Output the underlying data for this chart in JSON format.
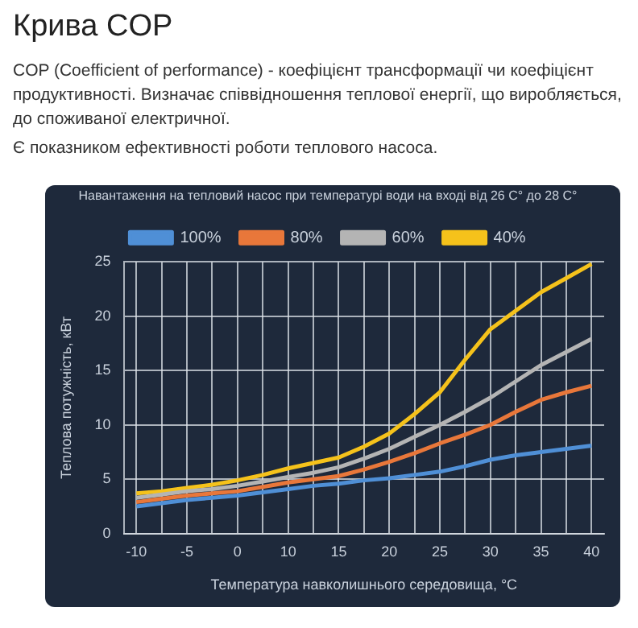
{
  "chart_data": {
    "type": "line",
    "title": "Крива COP",
    "annotations": [
      "COP (Coefficient of performance) - коефіцієнт трансформації чи коефіцієнт продуктивності. Визначає співвідношення теплової енергії, що виробляється, до споживаної електричної.",
      "Є показником ефективності роботи теплового насоса."
    ],
    "subtitle": "Навантаження на тепловий насос при температурі води на вході від 26 C° до 28 C°",
    "xlabel": "Температура навколишнього середовища, °C",
    "ylabel": "Теплова потужність, кВт",
    "categories": [
      "-10",
      null,
      "-5",
      null,
      "0",
      null,
      "10",
      null,
      "15",
      null,
      "20",
      null,
      "25",
      null,
      "30",
      null,
      "35",
      null,
      "40"
    ],
    "series": [
      {
        "name": "100%",
        "color": "#4f8fd6",
        "values": [
          2.5,
          2.8,
          3.1,
          3.3,
          3.5,
          3.8,
          4.1,
          4.4,
          4.6,
          4.9,
          5.1,
          5.4,
          5.7,
          6.2,
          6.8,
          7.2,
          7.5,
          7.8,
          8.1
        ]
      },
      {
        "name": "80%",
        "color": "#e8773a",
        "values": [
          2.9,
          3.2,
          3.5,
          3.7,
          3.9,
          4.3,
          4.7,
          5.0,
          5.3,
          5.9,
          6.6,
          7.4,
          8.3,
          9.1,
          10.0,
          11.2,
          12.3,
          13.0,
          13.6
        ]
      },
      {
        "name": "60%",
        "color": "#b4b4b4",
        "values": [
          3.3,
          3.6,
          3.9,
          4.1,
          4.4,
          4.8,
          5.2,
          5.6,
          6.1,
          6.9,
          7.8,
          8.9,
          10.0,
          11.2,
          12.5,
          14.0,
          15.5,
          16.7,
          17.9
        ]
      },
      {
        "name": "40%",
        "color": "#f5c21b",
        "values": [
          3.7,
          3.9,
          4.2,
          4.5,
          4.9,
          5.4,
          6.0,
          6.5,
          7.0,
          8.0,
          9.2,
          11.0,
          13.0,
          16.0,
          18.8,
          20.5,
          22.2,
          23.5,
          24.8
        ]
      }
    ],
    "ylim": [
      0,
      25
    ],
    "yticks": [
      0,
      5,
      10,
      15,
      20,
      25
    ],
    "grid": true,
    "legend": "top",
    "marker": "none",
    "line_style": "solid"
  }
}
